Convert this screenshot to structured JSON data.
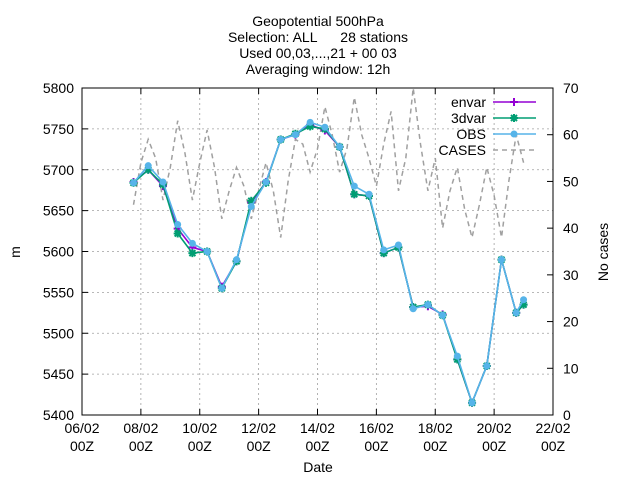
{
  "chart_data": {
    "type": "line",
    "title_lines": [
      "Geopotential 500hPa",
      "Selection: ALL      28 stations",
      "Used 00,03,...,21 + 00 03",
      "Averaging window: 12h"
    ],
    "xlabel": "Date",
    "ylabel": "m",
    "y2label": "No cases",
    "x_unit": "days",
    "xlim": [
      0,
      16
    ],
    "ylim": [
      5400,
      5800
    ],
    "y2lim": [
      0,
      70
    ],
    "x_ticks": [
      {
        "x": 0,
        "line1": "06/02",
        "line2": "00Z"
      },
      {
        "x": 2,
        "line1": "08/02",
        "line2": "00Z"
      },
      {
        "x": 4,
        "line1": "10/02",
        "line2": "00Z"
      },
      {
        "x": 6,
        "line1": "12/02",
        "line2": "00Z"
      },
      {
        "x": 8,
        "line1": "14/02",
        "line2": "00Z"
      },
      {
        "x": 10,
        "line1": "16/02",
        "line2": "00Z"
      },
      {
        "x": 12,
        "line1": "18/02",
        "line2": "00Z"
      },
      {
        "x": 14,
        "line1": "20/02",
        "line2": "00Z"
      },
      {
        "x": 16,
        "line1": "22/02",
        "line2": "00Z"
      }
    ],
    "y_ticks": [
      5400,
      5450,
      5500,
      5550,
      5600,
      5650,
      5700,
      5750,
      5800
    ],
    "y2_ticks": [
      0,
      10,
      20,
      30,
      40,
      50,
      60,
      70
    ],
    "grid": true,
    "legend_position": "top-right",
    "series": [
      {
        "name": "envar",
        "axis": "y",
        "color": "#9400d3",
        "marker": "plus",
        "x": [
          1.75,
          2.25,
          2.75,
          3.25,
          3.75,
          4.25,
          4.75,
          5.25,
          5.75,
          6.25,
          6.75,
          7.25,
          7.75,
          8.25,
          8.75,
          9.25,
          9.75,
          10.25,
          10.75,
          11.25,
          11.75,
          12.25,
          12.75,
          13.25,
          13.75,
          14.25,
          14.75,
          15.0
        ],
        "values": [
          5685,
          5700,
          5680,
          5628,
          5605,
          5600,
          5557,
          5588,
          5660,
          5685,
          5737,
          5743,
          5755,
          5748,
          5728,
          5670,
          5668,
          5598,
          5605,
          5532,
          5533,
          5523,
          5468,
          5415,
          5460,
          5590,
          5525,
          5535
        ]
      },
      {
        "name": "3dvar",
        "axis": "y",
        "color": "#009e73",
        "marker": "star",
        "x": [
          1.75,
          2.25,
          2.75,
          3.25,
          3.75,
          4.25,
          4.75,
          5.25,
          5.75,
          6.25,
          6.75,
          7.25,
          7.75,
          8.25,
          8.75,
          9.25,
          9.75,
          10.25,
          10.75,
          11.25,
          11.75,
          12.25,
          12.75,
          13.25,
          13.75,
          14.25,
          14.75,
          15.0
        ],
        "values": [
          5684,
          5700,
          5682,
          5622,
          5598,
          5600,
          5555,
          5588,
          5662,
          5684,
          5737,
          5744,
          5753,
          5750,
          5728,
          5670,
          5668,
          5598,
          5605,
          5532,
          5535,
          5522,
          5468,
          5415,
          5460,
          5590,
          5525,
          5535
        ]
      },
      {
        "name": "OBS",
        "axis": "y",
        "color": "#56b4e9",
        "marker": "circle",
        "x": [
          1.75,
          2.25,
          2.75,
          3.25,
          3.75,
          4.25,
          4.75,
          5.25,
          5.75,
          6.25,
          6.75,
          7.25,
          7.75,
          8.25,
          8.75,
          9.25,
          9.75,
          10.25,
          10.75,
          11.25,
          11.75,
          12.25,
          12.75,
          13.25,
          13.75,
          14.25,
          14.75,
          15.0
        ],
        "values": [
          5684,
          5705,
          5685,
          5633,
          5610,
          5600,
          5555,
          5590,
          5655,
          5685,
          5737,
          5743,
          5758,
          5752,
          5728,
          5680,
          5670,
          5602,
          5608,
          5530,
          5535,
          5522,
          5472,
          5415,
          5460,
          5590,
          5525,
          5541
        ]
      },
      {
        "name": "CASES",
        "axis": "y2",
        "color": "#a0a0a0",
        "dashed": true,
        "x": [
          1.75,
          2.0,
          2.25,
          2.5,
          2.75,
          3.0,
          3.25,
          3.5,
          3.75,
          4.0,
          4.25,
          4.5,
          4.75,
          5.0,
          5.25,
          5.5,
          5.75,
          6.0,
          6.25,
          6.5,
          6.75,
          7.0,
          7.25,
          7.5,
          7.75,
          8.0,
          8.25,
          8.5,
          8.75,
          9.0,
          9.25,
          9.5,
          9.75,
          10.0,
          10.25,
          10.5,
          10.75,
          11.0,
          11.25,
          11.5,
          11.75,
          12.0,
          12.25,
          12.5,
          12.75,
          13.0,
          13.25,
          13.5,
          13.75,
          14.0,
          14.25,
          14.5,
          14.75,
          15.0
        ],
        "values": [
          45,
          54,
          59,
          55,
          46,
          53,
          63,
          56,
          46,
          54,
          61,
          53,
          42,
          48,
          53,
          49,
          42,
          48,
          54,
          48,
          38,
          50,
          59,
          58,
          52,
          57,
          66,
          60,
          52,
          57,
          68,
          60,
          55,
          49,
          58,
          65,
          48,
          55,
          70,
          58,
          48,
          55,
          40,
          48,
          53,
          44,
          38,
          45,
          53,
          47,
          38,
          50,
          60,
          54
        ]
      }
    ]
  }
}
